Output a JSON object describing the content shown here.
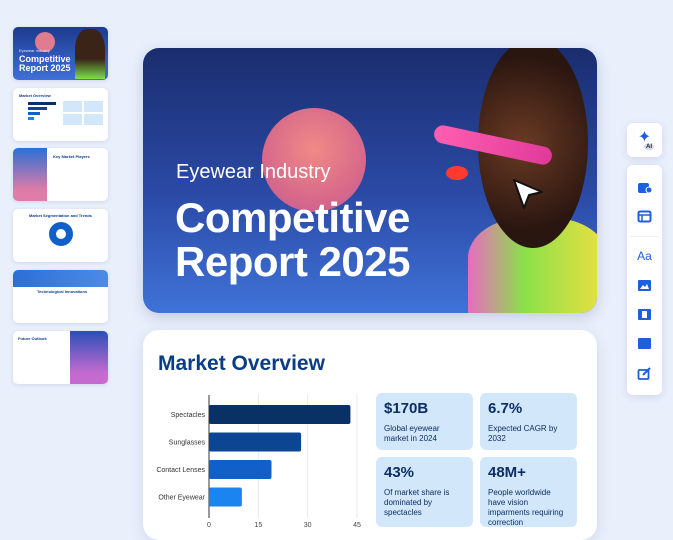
{
  "thumbnails": [
    {
      "subtitle": "Eyewear Industry",
      "title": "Competitive Report 2025"
    },
    {
      "title": "Market Overview"
    },
    {
      "title": "Key Market Players"
    },
    {
      "title": "Market Segmentation and Trends"
    },
    {
      "title": "Technological Innovations"
    },
    {
      "title": "Future Outlook"
    }
  ],
  "hero": {
    "subtitle": "Eyewear Industry",
    "title_line1": "Competitive",
    "title_line2": "Report 2025"
  },
  "overview": {
    "title": "Market Overview",
    "stats": [
      {
        "value": "$170B",
        "desc": "Global eyewear market in 2024"
      },
      {
        "value": "6.7%",
        "desc": "Expected CAGR by 2032"
      },
      {
        "value": "43%",
        "desc": "Of market share is dominated by spectacles"
      },
      {
        "value": "48M+",
        "desc": "People worldwide have vision imparments requiring correction"
      }
    ]
  },
  "chart_data": {
    "type": "bar",
    "orientation": "horizontal",
    "categories": [
      "Spectacles",
      "Sunglasses",
      "Contact Lenses",
      "Other Eyewear"
    ],
    "values": [
      43,
      28,
      19,
      10
    ],
    "xticks": [
      "0",
      "15",
      "30",
      "45"
    ],
    "xlim": [
      0,
      45
    ],
    "grid": true,
    "colors": [
      "#0a3166",
      "#0c4592",
      "#1160c9",
      "#1b84f0"
    ]
  },
  "toolbar": {
    "ai_label": "AI",
    "icons": [
      "magic-ai",
      "brand-kit",
      "layout",
      "text",
      "image",
      "video",
      "background",
      "edit"
    ]
  },
  "accent": "#1d5fe0"
}
